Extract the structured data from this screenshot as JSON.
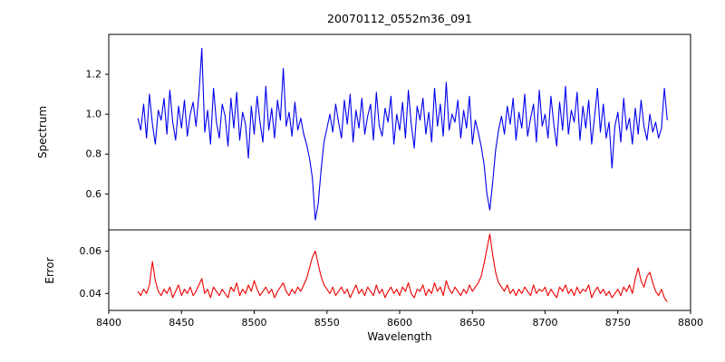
{
  "chart_data": {
    "type": "line",
    "title": "20070112_0552m36_091",
    "xlabel": "Wavelength",
    "xlim": [
      8400,
      8800
    ],
    "x_ticks": [
      8400,
      8450,
      8500,
      8550,
      8600,
      8650,
      8700,
      8750,
      8800
    ],
    "x_tick_labels": [
      "8400",
      "8450",
      "8500",
      "8550",
      "8600",
      "8650",
      "8700",
      "8750",
      "8800"
    ],
    "x_start": 8420,
    "x_step": 2,
    "grid": false,
    "legend": "none",
    "subplots": [
      {
        "name": "spectrum",
        "ylabel": "Spectrum",
        "ylim": [
          0.42,
          1.4
        ],
        "y_ticks": [
          0.6,
          0.8,
          1.0,
          1.2
        ],
        "y_tick_labels": [
          "0.6",
          "0.8",
          "1.0",
          "1.2"
        ],
        "color": "#0000ee",
        "values": [
          0.98,
          0.92,
          1.05,
          0.88,
          1.1,
          0.95,
          0.85,
          1.02,
          0.97,
          1.08,
          0.9,
          1.12,
          0.96,
          0.87,
          1.04,
          0.93,
          1.07,
          0.89,
          1.0,
          1.06,
          0.94,
          1.1,
          1.33,
          0.91,
          1.02,
          0.85,
          1.13,
          0.96,
          0.88,
          1.05,
          0.99,
          0.84,
          1.08,
          0.93,
          1.11,
          0.87,
          1.01,
          0.95,
          0.78,
          1.04,
          0.9,
          1.09,
          0.96,
          0.86,
          1.14,
          0.92,
          1.03,
          0.88,
          1.07,
          0.97,
          1.23,
          0.94,
          1.01,
          0.89,
          1.06,
          0.92,
          0.98,
          0.9,
          0.85,
          0.78,
          0.68,
          0.47,
          0.55,
          0.72,
          0.86,
          0.93,
          1.0,
          0.91,
          1.05,
          0.96,
          0.88,
          1.07,
          0.95,
          1.1,
          0.86,
          1.02,
          0.93,
          1.08,
          0.9,
          0.99,
          1.05,
          0.87,
          1.11,
          0.94,
          0.89,
          1.03,
          0.96,
          1.09,
          0.85,
          1.0,
          0.92,
          1.06,
          0.88,
          1.12,
          0.95,
          0.83,
          1.04,
          0.97,
          1.08,
          0.9,
          1.01,
          0.86,
          1.13,
          0.94,
          1.05,
          0.89,
          1.16,
          0.92,
          1.0,
          0.96,
          1.07,
          0.88,
          1.02,
          0.93,
          1.09,
          0.85,
          0.97,
          0.91,
          0.84,
          0.75,
          0.6,
          0.52,
          0.66,
          0.82,
          0.92,
          0.99,
          0.9,
          1.04,
          0.95,
          1.08,
          0.87,
          1.01,
          0.93,
          1.1,
          0.89,
          0.98,
          1.05,
          0.86,
          1.12,
          0.94,
          1.0,
          0.88,
          1.09,
          0.95,
          0.84,
          1.06,
          0.92,
          1.14,
          0.9,
          1.02,
          0.96,
          1.11,
          0.87,
          1.04,
          0.93,
          1.07,
          0.85,
          0.99,
          1.13,
          0.91,
          1.05,
          0.88,
          0.96,
          0.73,
          0.94,
          1.01,
          0.86,
          1.08,
          0.92,
          0.98,
          0.85,
          1.03,
          0.9,
          1.07,
          0.94,
          0.87,
          1.0,
          0.91,
          0.96,
          0.88,
          0.93,
          1.13,
          0.97
        ]
      },
      {
        "name": "error",
        "ylabel": "Error",
        "ylim": [
          0.032,
          0.07
        ],
        "y_ticks": [
          0.04,
          0.06
        ],
        "y_tick_labels": [
          "0.04",
          "0.06"
        ],
        "color": "#ee0000",
        "values": [
          0.041,
          0.039,
          0.042,
          0.04,
          0.044,
          0.055,
          0.046,
          0.041,
          0.039,
          0.042,
          0.04,
          0.043,
          0.038,
          0.041,
          0.044,
          0.039,
          0.042,
          0.04,
          0.043,
          0.039,
          0.041,
          0.044,
          0.047,
          0.04,
          0.042,
          0.038,
          0.043,
          0.041,
          0.039,
          0.042,
          0.04,
          0.038,
          0.043,
          0.041,
          0.045,
          0.039,
          0.042,
          0.04,
          0.044,
          0.041,
          0.046,
          0.042,
          0.039,
          0.041,
          0.043,
          0.04,
          0.042,
          0.038,
          0.041,
          0.043,
          0.045,
          0.041,
          0.039,
          0.042,
          0.04,
          0.043,
          0.041,
          0.044,
          0.047,
          0.052,
          0.057,
          0.06,
          0.054,
          0.048,
          0.044,
          0.042,
          0.04,
          0.043,
          0.039,
          0.041,
          0.043,
          0.04,
          0.042,
          0.038,
          0.041,
          0.044,
          0.04,
          0.042,
          0.039,
          0.043,
          0.041,
          0.039,
          0.044,
          0.04,
          0.042,
          0.038,
          0.041,
          0.043,
          0.04,
          0.042,
          0.039,
          0.043,
          0.041,
          0.045,
          0.04,
          0.038,
          0.042,
          0.041,
          0.044,
          0.039,
          0.042,
          0.04,
          0.045,
          0.041,
          0.043,
          0.039,
          0.046,
          0.042,
          0.04,
          0.043,
          0.041,
          0.039,
          0.042,
          0.04,
          0.044,
          0.041,
          0.043,
          0.045,
          0.048,
          0.054,
          0.061,
          0.068,
          0.058,
          0.05,
          0.045,
          0.043,
          0.041,
          0.044,
          0.04,
          0.042,
          0.039,
          0.042,
          0.04,
          0.043,
          0.041,
          0.039,
          0.044,
          0.04,
          0.042,
          0.041,
          0.043,
          0.039,
          0.042,
          0.04,
          0.038,
          0.043,
          0.041,
          0.044,
          0.04,
          0.042,
          0.039,
          0.043,
          0.04,
          0.042,
          0.041,
          0.044,
          0.038,
          0.041,
          0.043,
          0.04,
          0.042,
          0.039,
          0.041,
          0.038,
          0.04,
          0.042,
          0.039,
          0.043,
          0.041,
          0.044,
          0.04,
          0.047,
          0.052,
          0.046,
          0.043,
          0.048,
          0.05,
          0.045,
          0.041,
          0.039,
          0.042,
          0.038,
          0.036
        ]
      }
    ]
  }
}
